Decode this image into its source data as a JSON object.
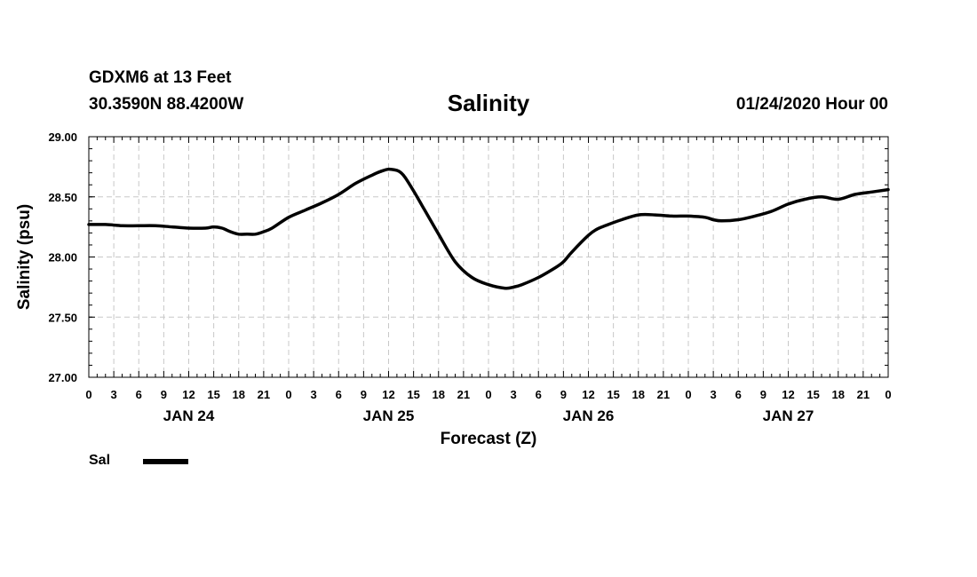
{
  "header": {
    "station": "GDXM6 at 13 Feet",
    "coords": "30.3590N 88.4200W",
    "datetime": "01/24/2020 Hour 00"
  },
  "legend": {
    "label": "Sal"
  },
  "chart_data": {
    "type": "line",
    "title": "Salinity",
    "xlabel": "Forecast (Z)",
    "ylabel": "Salinity (psu)",
    "xlim": [
      0,
      96
    ],
    "ylim": [
      27.0,
      29.0
    ],
    "yticks": [
      "27.00",
      "27.50",
      "28.00",
      "28.50",
      "29.00"
    ],
    "yvalues": [
      27.0,
      27.5,
      28.0,
      28.5,
      29.0
    ],
    "xtick_labels": [
      "0",
      "3",
      "6",
      "9",
      "12",
      "15",
      "18",
      "21",
      "0",
      "3",
      "6",
      "9",
      "12",
      "15",
      "18",
      "21",
      "0",
      "3",
      "6",
      "9",
      "12",
      "15",
      "18",
      "21",
      "0",
      "3",
      "6",
      "9",
      "12",
      "15",
      "18",
      "21",
      "0"
    ],
    "day_labels": [
      {
        "label": "JAN 24",
        "hour": 12
      },
      {
        "label": "JAN 25",
        "hour": 36
      },
      {
        "label": "JAN 26",
        "hour": 60
      },
      {
        "label": "JAN 27",
        "hour": 84
      }
    ],
    "grid": true,
    "series": [
      {
        "name": "Sal",
        "color": "#000000",
        "x": [
          0,
          2,
          4,
          6,
          8,
          10,
          12,
          14,
          15,
          16,
          17,
          18,
          19,
          20,
          21,
          22,
          24,
          26,
          28,
          30,
          32,
          34,
          35,
          36,
          37,
          37.5,
          38,
          39,
          40,
          42,
          44,
          46,
          48,
          50,
          51,
          52,
          54,
          56,
          57,
          58,
          60,
          61,
          62,
          64,
          66,
          68,
          70,
          72,
          74,
          75,
          76,
          78,
          80,
          82,
          84,
          86,
          88,
          90,
          92,
          94,
          96
        ],
        "y": [
          28.27,
          28.27,
          28.26,
          28.26,
          28.26,
          28.25,
          28.24,
          28.24,
          28.25,
          28.24,
          28.21,
          28.19,
          28.19,
          28.19,
          28.21,
          28.24,
          28.33,
          28.39,
          28.45,
          28.52,
          28.61,
          28.68,
          28.71,
          28.73,
          28.72,
          28.7,
          28.66,
          28.55,
          28.43,
          28.19,
          27.96,
          27.83,
          27.77,
          27.74,
          27.75,
          27.77,
          27.83,
          27.91,
          27.96,
          28.04,
          28.18,
          28.23,
          28.26,
          28.31,
          28.35,
          28.35,
          28.34,
          28.34,
          28.33,
          28.31,
          28.3,
          28.31,
          28.34,
          28.38,
          28.44,
          28.48,
          28.5,
          28.48,
          28.52,
          28.54,
          28.56
        ]
      }
    ]
  }
}
